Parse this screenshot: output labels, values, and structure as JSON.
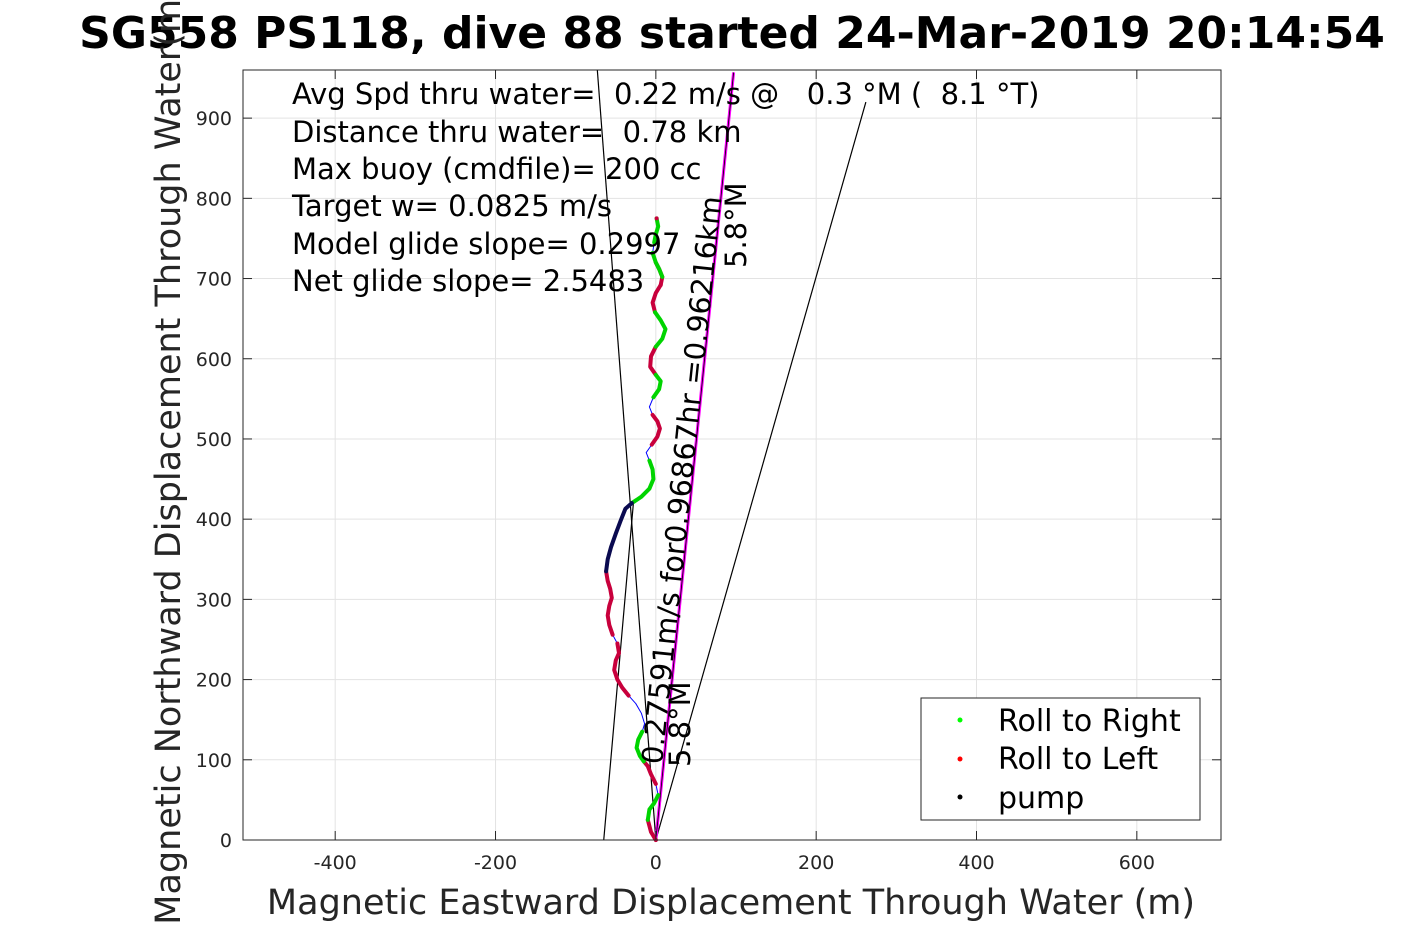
{
  "chart_data": {
    "type": "scatter",
    "title": "SG558 PS118, dive 88 started 24-Mar-2019 20:14:54",
    "xlabel": "Magnetic Eastward Displacement Through Water (m)",
    "ylabel": "Magnetic Northward Displacement Through Water(m)",
    "xlim": [
      -515,
      705
    ],
    "ylim": [
      0,
      960
    ],
    "xticks": [
      -400,
      -200,
      0,
      200,
      400,
      600
    ],
    "yticks": [
      0,
      100,
      200,
      300,
      400,
      500,
      600,
      700,
      800,
      900
    ],
    "grid": true,
    "annotations": [
      "Avg Spd thru water=  0.22 m/s @   0.3 °M (  8.1 °T)",
      "Distance thru water=  0.78 km",
      "Max buoy (cmdfile)= 200 cc",
      "Target w= 0.0825 m/s",
      "Model glide slope= 0.2997",
      "Net glide slope= 2.5483"
    ],
    "rotated_labels": {
      "current": "0.27591m/s for0.96867hr =0.96216km",
      "current_heading": "5.8°M",
      "current_heading_2": "5.8°M"
    },
    "legend": {
      "placement": "bottom-right",
      "entries": [
        {
          "name": "Roll to Right",
          "color": "#00ff00"
        },
        {
          "name": "Roll to Left",
          "color": "#ff0000"
        },
        {
          "name": "pump",
          "color": "#000000"
        }
      ]
    },
    "colors": {
      "track": "#0000ff",
      "roll_right": "#00d400",
      "roll_left": "#c8003c",
      "pump": "#0a0a50",
      "current_vector": "#ff00ff",
      "lines": "#000000"
    },
    "track": [
      [
        0,
        0
      ],
      [
        -6,
        10
      ],
      [
        -10,
        25
      ],
      [
        -8,
        38
      ],
      [
        -2,
        46
      ],
      [
        3,
        56
      ],
      [
        0,
        70
      ],
      [
        -6,
        82
      ],
      [
        -10,
        92
      ],
      [
        -15,
        98
      ],
      [
        -20,
        105
      ],
      [
        -24,
        115
      ],
      [
        -22,
        125
      ],
      [
        -17,
        135
      ],
      [
        -14,
        145
      ],
      [
        -18,
        158
      ],
      [
        -25,
        170
      ],
      [
        -34,
        180
      ],
      [
        -42,
        190
      ],
      [
        -48,
        200
      ],
      [
        -52,
        212
      ],
      [
        -50,
        224
      ],
      [
        -46,
        233
      ],
      [
        -48,
        245
      ],
      [
        -54,
        256
      ],
      [
        -58,
        268
      ],
      [
        -60,
        280
      ],
      [
        -58,
        292
      ],
      [
        -55,
        302
      ],
      [
        -57,
        313
      ],
      [
        -60,
        323
      ],
      [
        -62,
        335
      ],
      [
        -60,
        350
      ],
      [
        -56,
        365
      ],
      [
        -50,
        382
      ],
      [
        -44,
        398
      ],
      [
        -38,
        413
      ],
      [
        -30,
        420
      ],
      [
        -18,
        428
      ],
      [
        -8,
        438
      ],
      [
        -3,
        450
      ],
      [
        -4,
        462
      ],
      [
        -8,
        473
      ],
      [
        -12,
        483
      ],
      [
        -5,
        493
      ],
      [
        2,
        503
      ],
      [
        5,
        513
      ],
      [
        2,
        522
      ],
      [
        -4,
        530
      ],
      [
        -8,
        540
      ],
      [
        -3,
        552
      ],
      [
        4,
        562
      ],
      [
        6,
        572
      ],
      [
        0,
        580
      ],
      [
        -7,
        590
      ],
      [
        -6,
        603
      ],
      [
        0,
        615
      ],
      [
        8,
        625
      ],
      [
        12,
        637
      ],
      [
        6,
        648
      ],
      [
        -1,
        658
      ],
      [
        -4,
        670
      ],
      [
        0,
        682
      ],
      [
        6,
        692
      ],
      [
        8,
        702
      ],
      [
        4,
        712
      ],
      [
        0,
        720
      ],
      [
        -4,
        732
      ],
      [
        -2,
        745
      ],
      [
        0,
        755
      ],
      [
        3,
        765
      ],
      [
        1,
        775
      ]
    ],
    "roll_right_ranges": [
      [
        2,
        5
      ],
      [
        9,
        13
      ],
      [
        37,
        42
      ],
      [
        50,
        53
      ],
      [
        56,
        60
      ],
      [
        64,
        67
      ],
      [
        68,
        71
      ]
    ],
    "roll_left_ranges": [
      [
        0,
        2
      ],
      [
        6,
        9
      ],
      [
        17,
        23
      ],
      [
        24,
        31
      ],
      [
        44,
        48
      ],
      [
        53,
        56
      ],
      [
        60,
        63
      ],
      [
        63,
        66
      ]
    ],
    "pump_ranges": [
      [
        31,
        37
      ]
    ],
    "current_vector": {
      "end": [
        97,
        957
      ]
    },
    "wedge_lines": [
      {
        "end": [
          -73,
          960
        ]
      },
      {
        "end": [
          262,
          920
        ]
      }
    ],
    "short_line": {
      "start": [
        -28,
        420
      ],
      "end": [
        -65,
        0
      ]
    }
  }
}
